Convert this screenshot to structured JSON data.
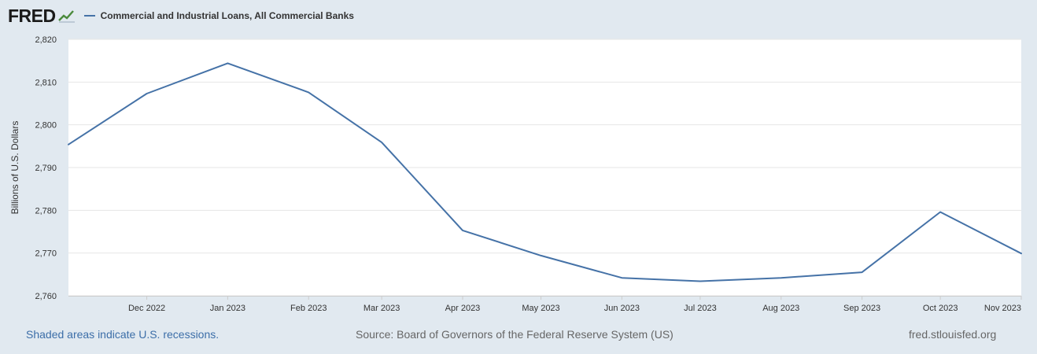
{
  "header": {
    "logo_text": "FRED",
    "logo_icon": "chart-line-icon"
  },
  "footer": {
    "recession_note": "Shaded areas indicate U.S. recessions.",
    "source": "Source: Board of Governors of the Federal Reserve System (US)",
    "site": "fred.stlouisfed.org"
  },
  "colors": {
    "background": "#e1e9f0",
    "plot_background": "#ffffff",
    "series": "#4572a7",
    "grid": "#e6e6e6",
    "link": "#3c6ea8"
  },
  "chart_data": {
    "type": "line",
    "title": "",
    "ylabel": "Billions of U.S. Dollars",
    "xlabel": "",
    "ylim": [
      2760,
      2820
    ],
    "yticks": [
      2760,
      2770,
      2780,
      2790,
      2800,
      2810,
      2820
    ],
    "ytick_labels": [
      "2,760",
      "2,770",
      "2,780",
      "2,790",
      "2,800",
      "2,810",
      "2,820"
    ],
    "x_range": [
      "2022-11-01",
      "2023-11-01"
    ],
    "xticks": [
      "2022-12-01",
      "2023-01-01",
      "2023-02-01",
      "2023-03-01",
      "2023-04-01",
      "2023-05-01",
      "2023-06-01",
      "2023-07-01",
      "2023-08-01",
      "2023-09-01",
      "2023-10-01",
      "2023-11-01"
    ],
    "xtick_labels": [
      "Dec 2022",
      "Jan 2023",
      "Feb 2023",
      "Mar 2023",
      "Apr 2023",
      "May 2023",
      "Jun 2023",
      "Jul 2023",
      "Aug 2023",
      "Sep 2023",
      "Oct 2023",
      "Nov 2023"
    ],
    "grid": true,
    "legend_position": "top-left",
    "series": [
      {
        "name": "Commercial and Industrial Loans, All Commercial Banks",
        "color": "#4572a7",
        "x": [
          "2022-11-01",
          "2022-12-01",
          "2023-01-01",
          "2023-02-01",
          "2023-03-01",
          "2023-04-01",
          "2023-05-01",
          "2023-06-01",
          "2023-07-01",
          "2023-08-01",
          "2023-09-01",
          "2023-10-01",
          "2023-11-01"
        ],
        "y": [
          2795.4,
          2807.3,
          2814.4,
          2807.6,
          2795.9,
          2775.3,
          2769.4,
          2764.2,
          2763.4,
          2764.2,
          2765.5,
          2779.6,
          2769.9
        ]
      }
    ]
  }
}
